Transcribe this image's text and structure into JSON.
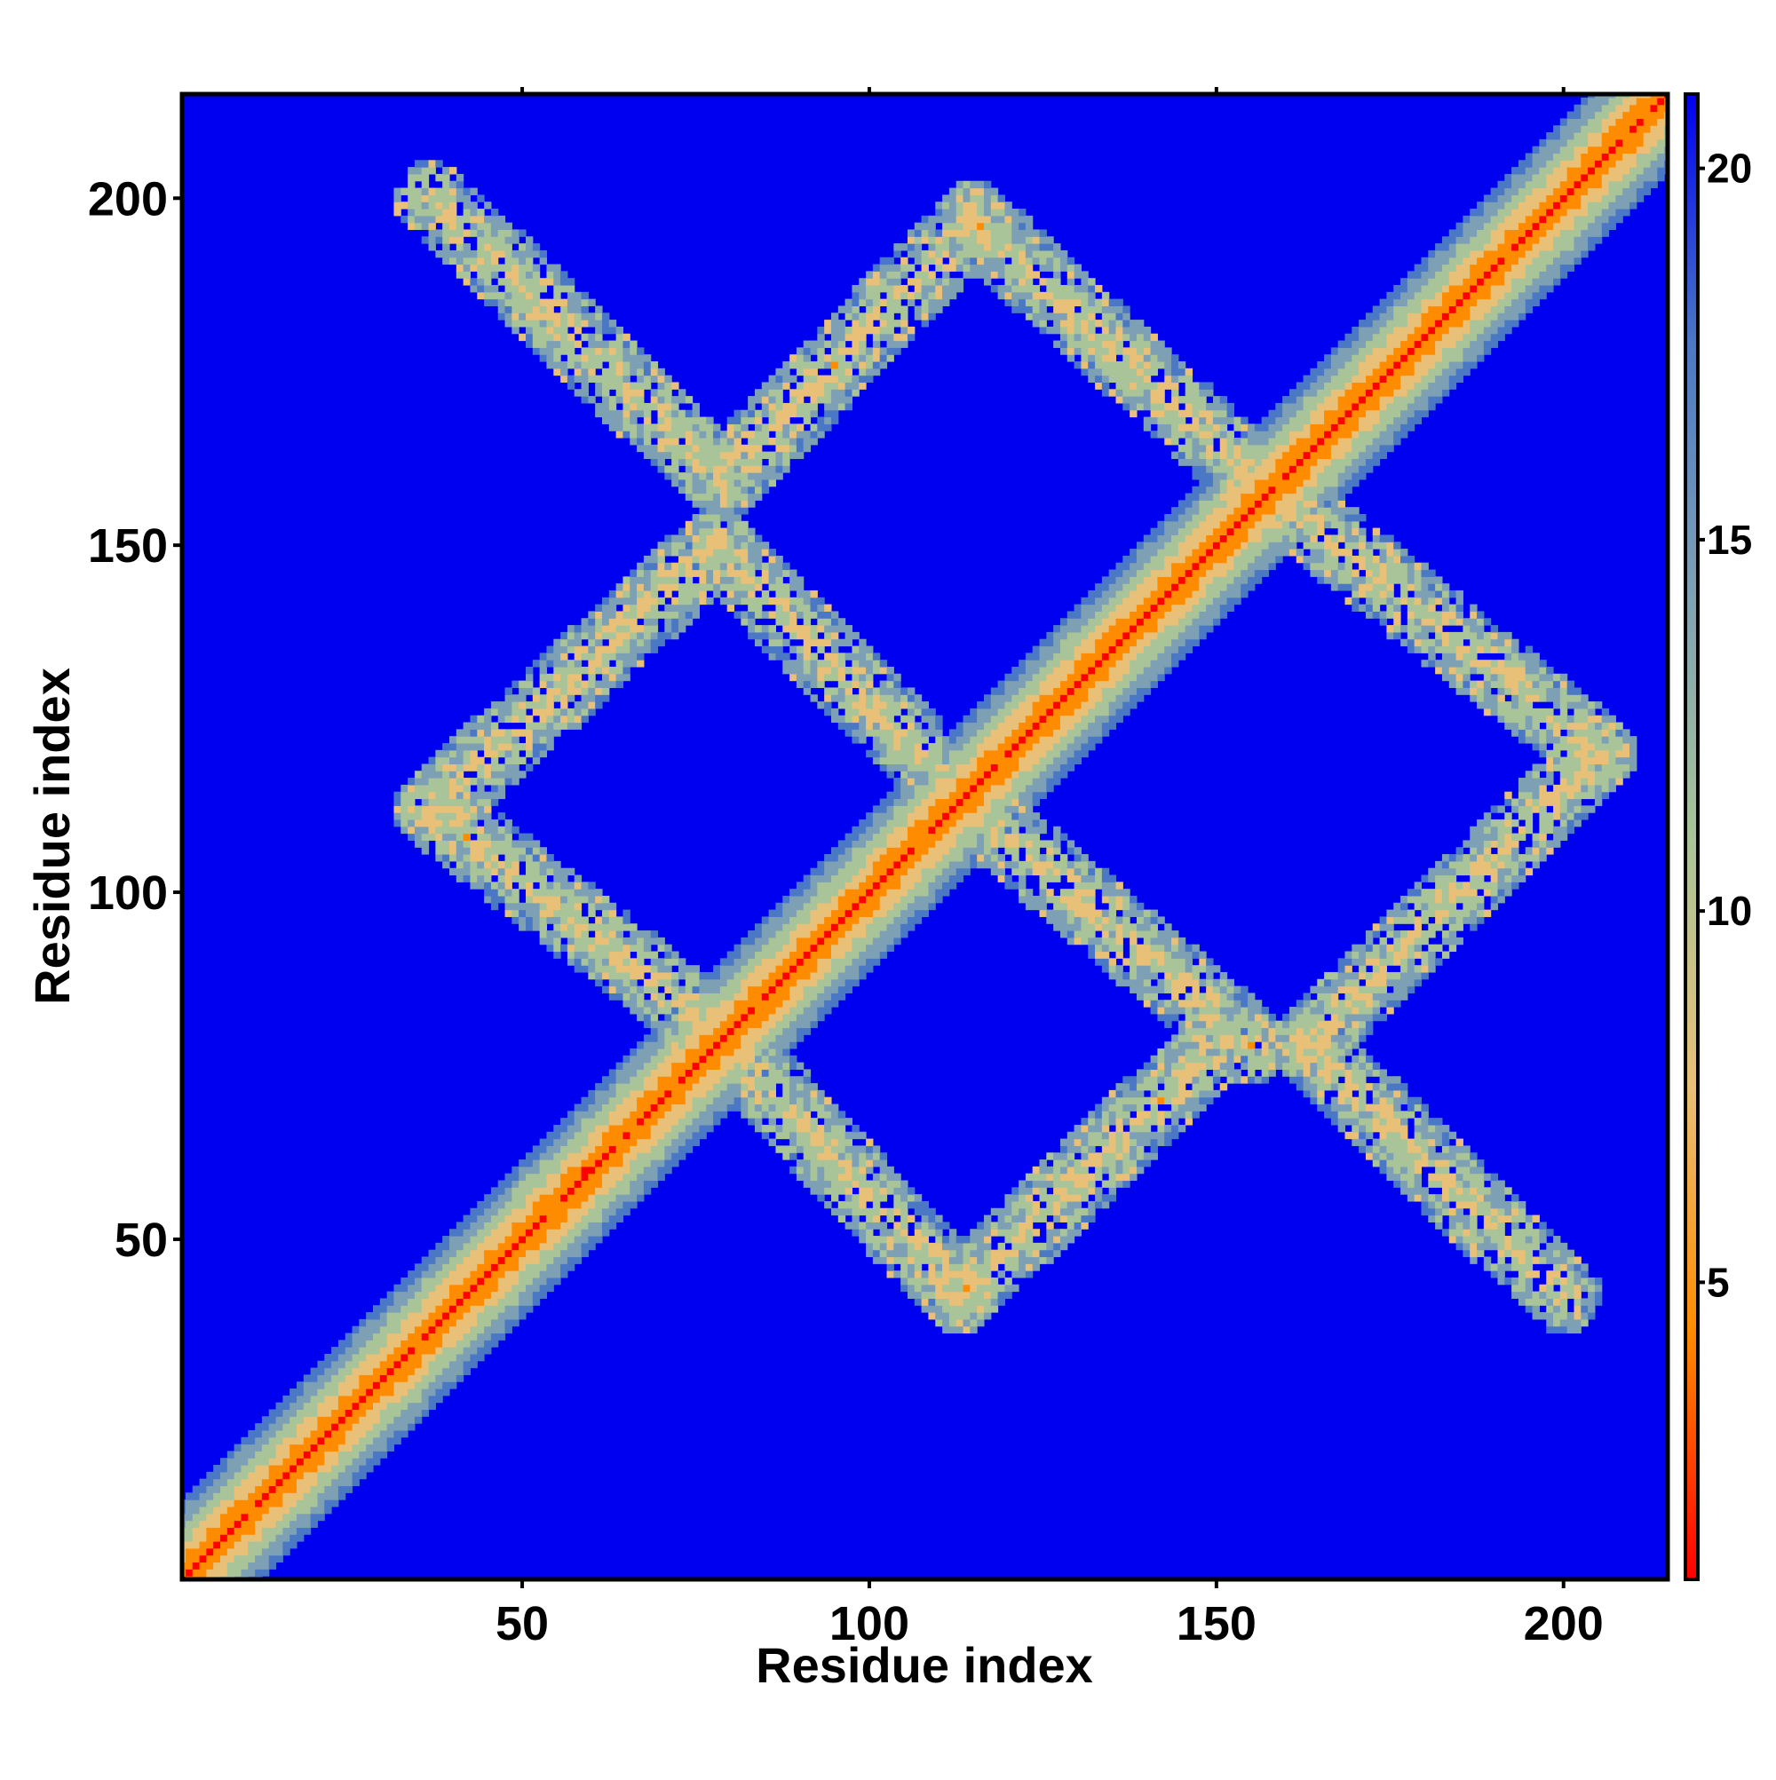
{
  "chart_data": {
    "type": "heatmap",
    "title": "",
    "xlabel": "Residue index",
    "ylabel": "Residue index",
    "xlim": [
      1,
      215
    ],
    "ylim": [
      1,
      215
    ],
    "xticks": [
      50,
      100,
      150,
      200
    ],
    "yticks": [
      50,
      100,
      150,
      200
    ],
    "colorbar": {
      "range": [
        1,
        21
      ],
      "ticks": [
        5,
        10,
        15,
        20
      ],
      "colors": [
        "#ff0000",
        "#ff8c00",
        "#e8c078",
        "#a8c498",
        "#7ea0b4",
        "#4a78c4",
        "#0000f0"
      ],
      "background_color": "#0000f0"
    },
    "description_bands": [
      {
        "kind": "diagonal",
        "from": [
          1,
          1
        ],
        "to": [
          215,
          215
        ],
        "core_value": 2,
        "half_width": 8
      },
      {
        "kind": "strand_pair",
        "from": [
          37,
          200
        ],
        "to": [
          78,
          160
        ],
        "value": 12
      },
      {
        "kind": "strand_pair",
        "from": [
          80,
          160
        ],
        "to": [
          115,
          197
        ],
        "value": 12
      },
      {
        "kind": "strand_pair",
        "from": [
          115,
          197
        ],
        "to": [
          155,
          160
        ],
        "value": 12
      },
      {
        "kind": "strand_pair",
        "from": [
          155,
          160
        ],
        "to": [
          205,
          120
        ],
        "value": 12
      },
      {
        "kind": "strand_pair",
        "from": [
          205,
          120
        ],
        "to": [
          163,
          78
        ],
        "value": 12
      },
      {
        "kind": "strand_pair",
        "from": [
          163,
          78
        ],
        "to": [
          200,
          42
        ],
        "value": 12
      },
      {
        "kind": "strand_pair",
        "from": [
          37,
          112
        ],
        "to": [
          78,
          150
        ],
        "value": 12
      },
      {
        "kind": "strand_pair",
        "from": [
          37,
          112
        ],
        "to": [
          78,
          80
        ],
        "value": 12
      },
      {
        "kind": "strand_pair",
        "from": [
          78,
          150
        ],
        "to": [
          115,
          112
        ],
        "value": 12
      },
      {
        "kind": "strand_pair",
        "from": [
          115,
          112
        ],
        "to": [
          155,
          78
        ],
        "value": 12
      },
      {
        "kind": "strand_pair",
        "from": [
          78,
          80
        ],
        "to": [
          113,
          42
        ],
        "value": 12
      },
      {
        "kind": "strand_pair",
        "from": [
          113,
          42
        ],
        "to": [
          150,
          78
        ],
        "value": 12
      }
    ]
  }
}
